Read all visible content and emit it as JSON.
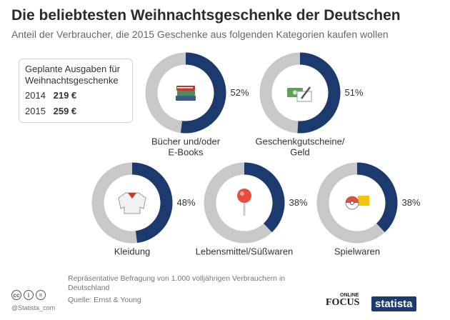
{
  "header": {
    "title": "Die beliebtesten Weihnachtsgeschenke der Deutschen",
    "subtitle": "Anteil der Verbraucher, die 2015 Geschenke aus folgenden Kategorien kaufen wollen"
  },
  "infobox": {
    "title": "Geplante Ausgaben für Weihnachtsgeschenke",
    "rows": [
      {
        "year": "2014",
        "amount": "219 €"
      },
      {
        "year": "2015",
        "amount": "259 €"
      }
    ]
  },
  "chart_data": {
    "type": "pie",
    "title": "Die beliebtesten Weihnachtsgeschenke der Deutschen",
    "unit": "%",
    "categories": [
      "Bücher und/oder E-Books",
      "Geschenkgutscheine/ Geld",
      "Kleidung",
      "Lebensmittel/Süßwaren",
      "Spielwaren"
    ],
    "values": [
      52,
      51,
      48,
      38,
      38
    ],
    "value_labels": [
      "52%",
      "51%",
      "48%",
      "38%",
      "38%"
    ],
    "label_lines": [
      [
        "Bücher und/oder",
        "E-Books"
      ],
      [
        "Geschenkgutscheine/",
        "Geld"
      ],
      [
        "Kleidung"
      ],
      [
        "Lebensmittel/Süßwaren"
      ],
      [
        "Spielwaren"
      ]
    ],
    "icons": [
      "books-icon",
      "voucher-icon",
      "sweater-icon",
      "lollipop-icon",
      "toys-icon"
    ],
    "colors": {
      "value": "#1d3a6e",
      "rest": "#c8c8c8"
    }
  },
  "footer": {
    "note": "Repräsentative Befragung von 1.000 volljährigen Verbrauchern in Deutschland",
    "source": "Quelle: Ernst & Young",
    "copyright": "@Statista_com",
    "cc": [
      "cc",
      "i",
      "="
    ],
    "brand_focus": "FOCUS",
    "brand_online": "ONLINE",
    "brand_statista": "statista"
  }
}
